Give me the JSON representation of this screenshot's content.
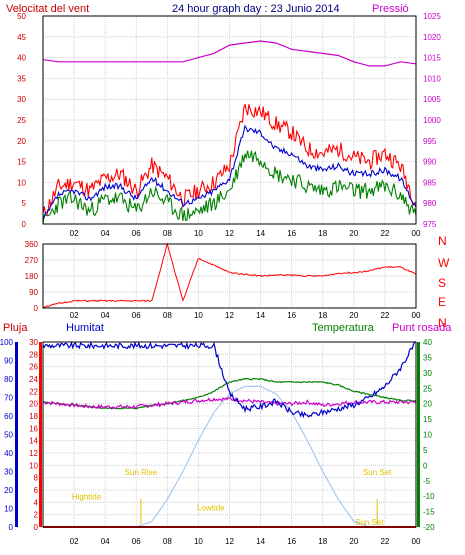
{
  "colors": {
    "red": "#ff0000",
    "blue": "#0000cc",
    "green": "#008000",
    "magenta": "#cc00cc",
    "darkred": "#cc0000",
    "lightblue": "#a8c8f0",
    "yellow": "#e0c000",
    "grid": "#c8c8c8",
    "frame": "#000000"
  },
  "chart_data": [
    {
      "type": "line",
      "title": "24 hour graph day : 23 Junio 2014",
      "left_axis_title": "Velocitat del vent",
      "right_axis_title": "Pressió",
      "x_ticks": [
        "02",
        "04",
        "06",
        "08",
        "10",
        "12",
        "14",
        "16",
        "18",
        "20",
        "22",
        "00"
      ],
      "ylim_left": [
        0,
        50
      ],
      "y_ticks_left": [
        "0",
        "5",
        "10",
        "15",
        "20",
        "25",
        "30",
        "35",
        "40",
        "45",
        "50"
      ],
      "ylim_right": [
        975,
        1025
      ],
      "y_ticks_right": [
        "975",
        "980",
        "985",
        "990",
        "995",
        "1000",
        "1005",
        "1010",
        "1015",
        "1020",
        "1025"
      ],
      "x_hours": [
        0,
        1,
        2,
        3,
        4,
        5,
        6,
        7,
        8,
        9,
        10,
        11,
        12,
        13,
        14,
        15,
        16,
        17,
        18,
        19,
        20,
        21,
        22,
        23,
        24
      ],
      "series": [
        {
          "key": "gust",
          "color": "red",
          "values": [
            2,
            9,
            10,
            8,
            11,
            12,
            8,
            14,
            11,
            6,
            8,
            10,
            14,
            28,
            27,
            24,
            22,
            18,
            17,
            18,
            16,
            15,
            17,
            14,
            5
          ]
        },
        {
          "key": "avg",
          "color": "blue",
          "values": [
            1,
            7,
            8,
            6,
            9,
            9,
            6,
            11,
            8,
            5,
            6,
            8,
            11,
            23,
            22,
            18,
            17,
            14,
            13,
            14,
            12,
            12,
            13,
            11,
            4
          ]
        },
        {
          "key": "min",
          "color": "green",
          "values": [
            0,
            5,
            6,
            3,
            6,
            6,
            3,
            8,
            5,
            2,
            3,
            5,
            8,
            17,
            16,
            12,
            11,
            9,
            8,
            9,
            8,
            8,
            9,
            7,
            2
          ]
        },
        {
          "key": "pressure",
          "color": "magenta",
          "values": [
            1014.5,
            1014,
            1014,
            1014,
            1014,
            1014,
            1014,
            1014,
            1014,
            1014,
            1015,
            1016,
            1018,
            1018.5,
            1019,
            1018.5,
            1017,
            1016.5,
            1016,
            1015.5,
            1014,
            1013,
            1013,
            1014,
            1013.5
          ]
        }
      ]
    },
    {
      "type": "line",
      "right_axis_title": "N W S E N",
      "direction_letters": [
        "N",
        "W",
        "S",
        "E",
        "N"
      ],
      "ylim": [
        0,
        360
      ],
      "y_ticks": [
        "0",
        "90",
        "180",
        "270",
        "360"
      ],
      "series": [
        {
          "key": "direction",
          "color": "red",
          "values": [
            5,
            25,
            40,
            40,
            40,
            40,
            40,
            40,
            360,
            40,
            280,
            240,
            200,
            190,
            180,
            185,
            185,
            180,
            180,
            195,
            200,
            210,
            230,
            230,
            190
          ]
        }
      ]
    },
    {
      "type": "line",
      "labels": {
        "rain": "Pluja",
        "humidity": "Humitat",
        "temperature": "Temperatura",
        "dewpoint": "Punt rosada"
      },
      "ylim_rain": [
        0,
        30
      ],
      "y_ticks_rain": [
        "0",
        "2",
        "4",
        "6",
        "8",
        "10",
        "12",
        "14",
        "16",
        "18",
        "20",
        "22",
        "24",
        "26",
        "28",
        "30"
      ],
      "ylim_humidity": [
        0,
        100
      ],
      "y_ticks_humidity": [
        "0",
        "10",
        "20",
        "30",
        "40",
        "50",
        "60",
        "70",
        "80",
        "90",
        "100"
      ],
      "ylim_temp": [
        -20,
        40
      ],
      "y_ticks_temp": [
        "-20",
        "-15",
        "-10",
        "-5",
        "0",
        "5",
        "10",
        "15",
        "20",
        "25",
        "30",
        "35",
        "40"
      ],
      "annotations": [
        {
          "text": "Sun Rise",
          "hour": 6.3,
          "value": 28
        },
        {
          "text": "Sun Set",
          "hour": 21.5,
          "value": 28
        },
        {
          "text": "Hightide",
          "hour": 2.8,
          "value": 15
        },
        {
          "text": "Lowtide",
          "hour": 10.8,
          "value": 9
        },
        {
          "text": "Sun Set",
          "hour": 21.0,
          "value": 1
        }
      ],
      "series": [
        {
          "key": "humidity",
          "color": "blue",
          "values": [
            98,
            98,
            98,
            98,
            98,
            98,
            98,
            98,
            98,
            98,
            98,
            98,
            72,
            64,
            65,
            68,
            62,
            60,
            62,
            64,
            66,
            70,
            76,
            86,
            100
          ]
        },
        {
          "key": "temperature",
          "color": "green",
          "values": [
            20.5,
            20,
            19.5,
            19,
            18.5,
            18.5,
            18.5,
            19.5,
            20,
            21,
            22,
            24,
            27,
            28,
            28,
            27,
            27,
            27,
            27,
            26,
            24,
            23,
            22,
            21,
            21
          ]
        },
        {
          "key": "dewpoint",
          "color": "magenta",
          "values": [
            20.5,
            20,
            19.5,
            19,
            19,
            19,
            19,
            19.5,
            20,
            20.5,
            21,
            21.5,
            21.5,
            21,
            20.5,
            20,
            20,
            20.5,
            19.5,
            20,
            20.5,
            20.5,
            20.5,
            20.5,
            20.5
          ]
        },
        {
          "key": "solar",
          "color": "lightblue",
          "values": [
            0,
            0,
            0,
            0,
            0,
            0,
            0,
            3,
            15,
            30,
            47,
            62,
            72,
            76,
            76,
            72,
            62,
            47,
            30,
            15,
            3,
            0,
            0,
            0,
            0
          ]
        },
        {
          "key": "rain",
          "color": "red",
          "values": [
            0,
            0,
            0,
            0,
            0,
            0,
            0,
            0,
            0,
            0,
            0,
            0,
            0,
            0,
            0,
            0,
            0,
            0,
            0,
            0,
            0,
            0,
            0,
            0,
            0
          ]
        }
      ]
    }
  ]
}
